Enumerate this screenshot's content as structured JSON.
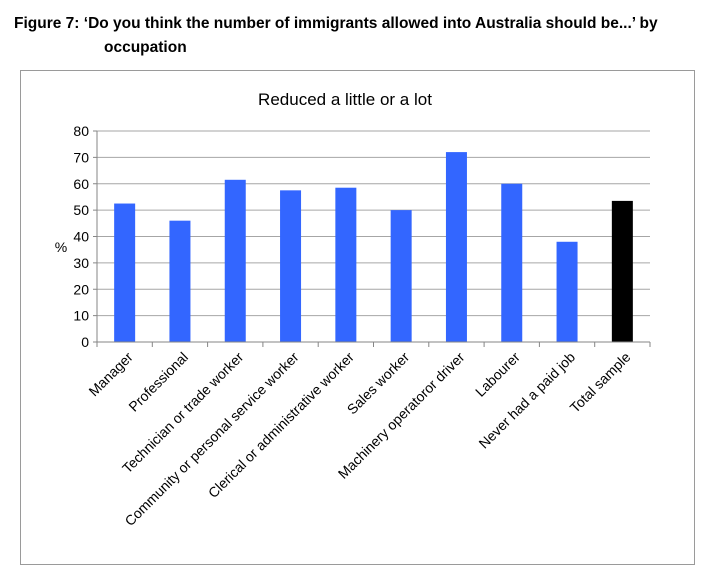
{
  "figure": {
    "caption_line1": "Figure 7: ‘Do you think the number of immigrants allowed into Australia should be...’ by",
    "caption_line2": "occupation"
  },
  "chart_data": {
    "type": "bar",
    "title": "Reduced a little or a lot",
    "xlabel": "",
    "ylabel": "%",
    "ylim": [
      0,
      80
    ],
    "yticks": [
      0,
      10,
      20,
      30,
      40,
      50,
      60,
      70,
      80
    ],
    "grid": true,
    "categories": [
      "Manager",
      "Professional",
      "Technician or trade worker",
      "Community or personal service worker",
      "Clerical or administrative worker",
      "Sales worker",
      "Machinery operatoror driver",
      "Labourer",
      "Never had a paid job",
      "Total sample"
    ],
    "values": [
      52.5,
      46,
      61.5,
      57.5,
      58.5,
      50,
      72,
      60,
      38,
      53.5
    ],
    "colors": {
      "bar": "#3366ff",
      "highlight_bar": "#000000",
      "grid": "#a6a6a6",
      "axis": "#868686"
    },
    "highlight_category": "Total sample"
  }
}
